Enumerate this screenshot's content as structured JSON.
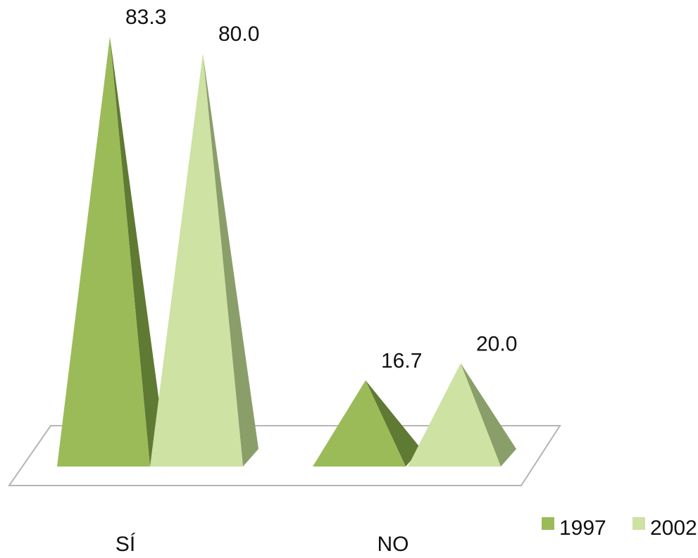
{
  "chart_data": {
    "type": "bar",
    "style": "3d-pyramid",
    "categories": [
      "SÍ",
      "NO"
    ],
    "series": [
      {
        "name": "1997",
        "values": [
          83.3,
          16.7
        ],
        "labels": [
          "83.3",
          "16.7"
        ],
        "color": "#9bbb59",
        "shade": "#5f7a32"
      },
      {
        "name": "2002",
        "values": [
          80.0,
          20.0
        ],
        "labels": [
          "80.0",
          "20.0"
        ],
        "color": "#cde2a3",
        "shade": "#8a9e6a"
      }
    ],
    "title": "",
    "xlabel": "",
    "ylabel": "",
    "ylim": [
      0,
      83.3
    ],
    "grid": false,
    "legend_position": "bottom-right",
    "floor_color": "#ffffff",
    "floor_edge_color": "#b5b5b5"
  }
}
